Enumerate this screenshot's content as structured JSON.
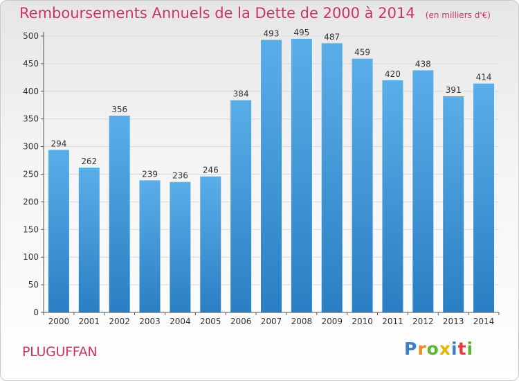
{
  "chart_data": {
    "type": "bar",
    "title": "Remboursements Annuels de la Dette de 2000 à 2014",
    "unit_note": "(en milliers d'€)",
    "categories": [
      "2000",
      "2001",
      "2002",
      "2003",
      "2004",
      "2005",
      "2006",
      "2007",
      "2008",
      "2009",
      "2010",
      "2011",
      "2012",
      "2013",
      "2014"
    ],
    "values": [
      294,
      262,
      356,
      239,
      236,
      246,
      384,
      493,
      495,
      487,
      459,
      420,
      438,
      391,
      414
    ],
    "ylim": [
      0,
      500
    ],
    "yticks": [
      0,
      50,
      100,
      150,
      200,
      250,
      300,
      350,
      400,
      450,
      500
    ],
    "grid": true,
    "bar_color_top": "#5aaee8",
    "bar_color_bottom": "#2a7fc4"
  },
  "commune": "PLUGUFFAN",
  "brand": {
    "letters": [
      "P",
      "r",
      "o",
      "x",
      "i",
      "t",
      "i"
    ],
    "colors": [
      "#3a7fc8",
      "#f08a1c",
      "#5bb530",
      "#e0b800",
      "#3a7fc8",
      "#e04040",
      "#5bb530"
    ]
  },
  "colors": {
    "title": "#cc3366",
    "grid": "#d9d9d9",
    "axis": "#555555"
  }
}
